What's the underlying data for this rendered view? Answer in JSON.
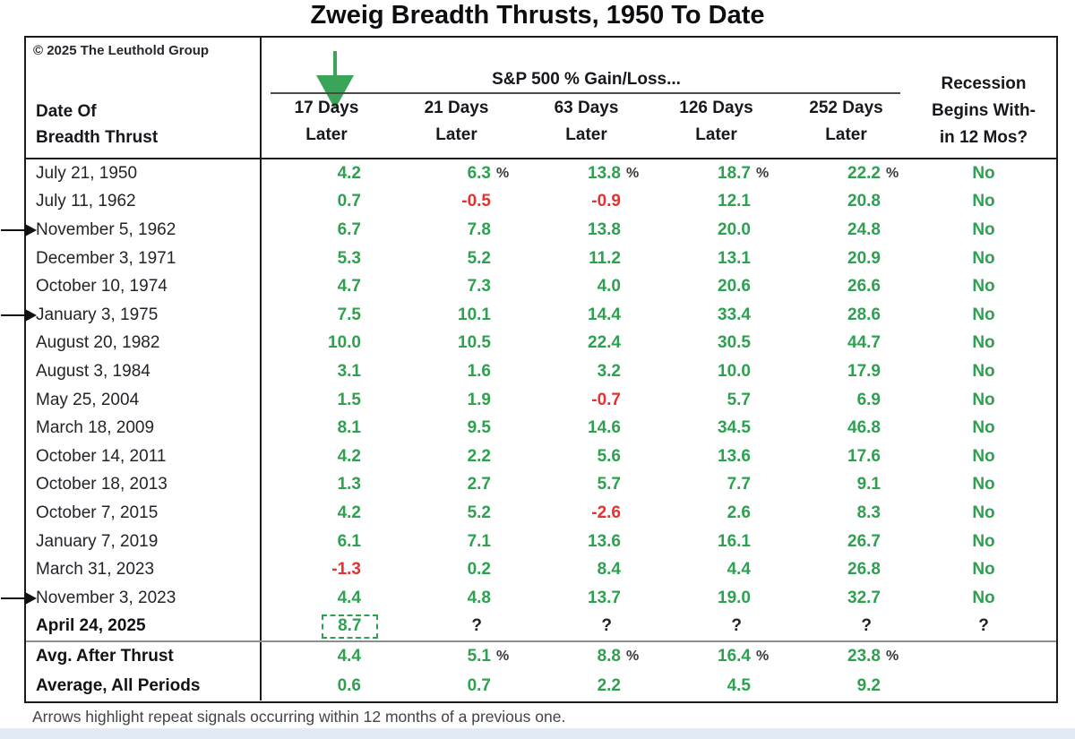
{
  "title": "Zweig Breadth Thrusts, 1950 To Date",
  "copyright": "© 2025 The Leuthold Group",
  "footnote": "Arrows highlight repeat signals occurring within 12 months of a previous one.",
  "colors": {
    "positive": "#2ea151",
    "negative": "#e73030",
    "signal_arrow_green": "#3aa559",
    "highlight_box_green": "#2ea151",
    "border": "#1b1b1b",
    "bottom_strip": "#e2ebf5"
  },
  "icons": {
    "header_arrow": "green-down-arrow",
    "row_marker": "black-right-arrow"
  },
  "chart_data": {
    "type": "table",
    "title": "Zweig Breadth Thrusts, 1950 To Date",
    "group_header": "S&P 500 % Gain/Loss...",
    "row_header": {
      "line1": "Date Of",
      "line2": "Breadth Thrust"
    },
    "columns": [
      {
        "line1": "17 Days",
        "line2": "Later"
      },
      {
        "line1": "21 Days",
        "line2": "Later"
      },
      {
        "line1": "63 Days",
        "line2": "Later"
      },
      {
        "line1": "126 Days",
        "line2": "Later"
      },
      {
        "line1": "252 Days",
        "line2": "Later"
      }
    ],
    "recession_header": {
      "line1": "Recession",
      "line2": "Begins With-",
      "line3": "in 12 Mos?"
    },
    "rows": [
      {
        "date": "July 21, 1950",
        "arrow": false,
        "bold": false,
        "recession": "No",
        "cells": [
          {
            "v": "4.2",
            "c": "pos"
          },
          {
            "v": "6.3",
            "c": "pos",
            "pct": true
          },
          {
            "v": "13.8",
            "c": "pos",
            "pct": true
          },
          {
            "v": "18.7",
            "c": "pos",
            "pct": true
          },
          {
            "v": "22.2",
            "c": "pos",
            "pct": true
          }
        ]
      },
      {
        "date": "July 11, 1962",
        "arrow": false,
        "bold": false,
        "recession": "No",
        "cells": [
          {
            "v": "0.7",
            "c": "pos"
          },
          {
            "v": "-0.5",
            "c": "neg"
          },
          {
            "v": "-0.9",
            "c": "neg"
          },
          {
            "v": "12.1",
            "c": "pos"
          },
          {
            "v": "20.8",
            "c": "pos"
          }
        ]
      },
      {
        "date": "November 5, 1962",
        "arrow": true,
        "bold": false,
        "recession": "No",
        "cells": [
          {
            "v": "6.7",
            "c": "pos"
          },
          {
            "v": "7.8",
            "c": "pos"
          },
          {
            "v": "13.8",
            "c": "pos"
          },
          {
            "v": "20.0",
            "c": "pos"
          },
          {
            "v": "24.8",
            "c": "pos"
          }
        ]
      },
      {
        "date": "December 3, 1971",
        "arrow": false,
        "bold": false,
        "recession": "No",
        "cells": [
          {
            "v": "5.3",
            "c": "pos"
          },
          {
            "v": "5.2",
            "c": "pos"
          },
          {
            "v": "11.2",
            "c": "pos"
          },
          {
            "v": "13.1",
            "c": "pos"
          },
          {
            "v": "20.9",
            "c": "pos"
          }
        ]
      },
      {
        "date": "October 10, 1974",
        "arrow": false,
        "bold": false,
        "recession": "No",
        "cells": [
          {
            "v": "4.7",
            "c": "pos"
          },
          {
            "v": "7.3",
            "c": "pos"
          },
          {
            "v": "4.0",
            "c": "pos"
          },
          {
            "v": "20.6",
            "c": "pos"
          },
          {
            "v": "26.6",
            "c": "pos"
          }
        ]
      },
      {
        "date": "January 3, 1975",
        "arrow": true,
        "bold": false,
        "recession": "No",
        "cells": [
          {
            "v": "7.5",
            "c": "pos"
          },
          {
            "v": "10.1",
            "c": "pos"
          },
          {
            "v": "14.4",
            "c": "pos"
          },
          {
            "v": "33.4",
            "c": "pos"
          },
          {
            "v": "28.6",
            "c": "pos"
          }
        ]
      },
      {
        "date": "August 20, 1982",
        "arrow": false,
        "bold": false,
        "recession": "No",
        "cells": [
          {
            "v": "10.0",
            "c": "pos"
          },
          {
            "v": "10.5",
            "c": "pos"
          },
          {
            "v": "22.4",
            "c": "pos"
          },
          {
            "v": "30.5",
            "c": "pos"
          },
          {
            "v": "44.7",
            "c": "pos"
          }
        ]
      },
      {
        "date": "August 3, 1984",
        "arrow": false,
        "bold": false,
        "recession": "No",
        "cells": [
          {
            "v": "3.1",
            "c": "pos"
          },
          {
            "v": "1.6",
            "c": "pos"
          },
          {
            "v": "3.2",
            "c": "pos"
          },
          {
            "v": "10.0",
            "c": "pos"
          },
          {
            "v": "17.9",
            "c": "pos"
          }
        ]
      },
      {
        "date": "May 25, 2004",
        "arrow": false,
        "bold": false,
        "recession": "No",
        "cells": [
          {
            "v": "1.5",
            "c": "pos"
          },
          {
            "v": "1.9",
            "c": "pos"
          },
          {
            "v": "-0.7",
            "c": "neg"
          },
          {
            "v": "5.7",
            "c": "pos"
          },
          {
            "v": "6.9",
            "c": "pos"
          }
        ]
      },
      {
        "date": "March 18, 2009",
        "arrow": false,
        "bold": false,
        "recession": "No",
        "cells": [
          {
            "v": "8.1",
            "c": "pos"
          },
          {
            "v": "9.5",
            "c": "pos"
          },
          {
            "v": "14.6",
            "c": "pos"
          },
          {
            "v": "34.5",
            "c": "pos"
          },
          {
            "v": "46.8",
            "c": "pos"
          }
        ]
      },
      {
        "date": "October 14, 2011",
        "arrow": false,
        "bold": false,
        "recession": "No",
        "cells": [
          {
            "v": "4.2",
            "c": "pos"
          },
          {
            "v": "2.2",
            "c": "pos"
          },
          {
            "v": "5.6",
            "c": "pos"
          },
          {
            "v": "13.6",
            "c": "pos"
          },
          {
            "v": "17.6",
            "c": "pos"
          }
        ]
      },
      {
        "date": "October 18, 2013",
        "arrow": false,
        "bold": false,
        "recession": "No",
        "cells": [
          {
            "v": "1.3",
            "c": "pos"
          },
          {
            "v": "2.7",
            "c": "pos"
          },
          {
            "v": "5.7",
            "c": "pos"
          },
          {
            "v": "7.7",
            "c": "pos"
          },
          {
            "v": "9.1",
            "c": "pos"
          }
        ]
      },
      {
        "date": "October 7, 2015",
        "arrow": false,
        "bold": false,
        "recession": "No",
        "cells": [
          {
            "v": "4.2",
            "c": "pos"
          },
          {
            "v": "5.2",
            "c": "pos"
          },
          {
            "v": "-2.6",
            "c": "neg"
          },
          {
            "v": "2.6",
            "c": "pos"
          },
          {
            "v": "8.3",
            "c": "pos"
          }
        ]
      },
      {
        "date": "January 7, 2019",
        "arrow": false,
        "bold": false,
        "recession": "No",
        "cells": [
          {
            "v": "6.1",
            "c": "pos"
          },
          {
            "v": "7.1",
            "c": "pos"
          },
          {
            "v": "13.6",
            "c": "pos"
          },
          {
            "v": "16.1",
            "c": "pos"
          },
          {
            "v": "26.7",
            "c": "pos"
          }
        ]
      },
      {
        "date": "March 31, 2023",
        "arrow": false,
        "bold": false,
        "recession": "No",
        "cells": [
          {
            "v": "-1.3",
            "c": "neg"
          },
          {
            "v": "0.2",
            "c": "pos"
          },
          {
            "v": "8.4",
            "c": "pos"
          },
          {
            "v": "4.4",
            "c": "pos"
          },
          {
            "v": "26.8",
            "c": "pos"
          }
        ]
      },
      {
        "date": "November 3, 2023",
        "arrow": true,
        "bold": false,
        "recession": "No",
        "cells": [
          {
            "v": "4.4",
            "c": "pos"
          },
          {
            "v": "4.8",
            "c": "pos"
          },
          {
            "v": "13.7",
            "c": "pos"
          },
          {
            "v": "19.0",
            "c": "pos"
          },
          {
            "v": "32.7",
            "c": "pos"
          }
        ]
      },
      {
        "date": "April 24, 2025",
        "arrow": false,
        "bold": true,
        "recession": "?",
        "cells": [
          {
            "v": "8.7",
            "c": "pos",
            "box": true
          },
          {
            "v": "?",
            "c": "dark",
            "q": true
          },
          {
            "v": "?",
            "c": "dark",
            "q": true
          },
          {
            "v": "?",
            "c": "dark",
            "q": true
          },
          {
            "v": "?",
            "c": "dark",
            "q": true
          }
        ]
      }
    ],
    "summary_rows": [
      {
        "label": "Avg. After Thrust",
        "recession": "",
        "cells": [
          {
            "v": "4.4",
            "c": "pos"
          },
          {
            "v": "5.1",
            "c": "pos",
            "pct": true
          },
          {
            "v": "8.8",
            "c": "pos",
            "pct": true
          },
          {
            "v": "16.4",
            "c": "pos",
            "pct": true
          },
          {
            "v": "23.8",
            "c": "pos",
            "pct": true
          }
        ]
      },
      {
        "label": "Average, All Periods",
        "recession": "",
        "cells": [
          {
            "v": "0.6",
            "c": "pos"
          },
          {
            "v": "0.7",
            "c": "pos"
          },
          {
            "v": "2.2",
            "c": "pos"
          },
          {
            "v": "4.5",
            "c": "pos"
          },
          {
            "v": "9.2",
            "c": "pos"
          }
        ]
      }
    ]
  }
}
